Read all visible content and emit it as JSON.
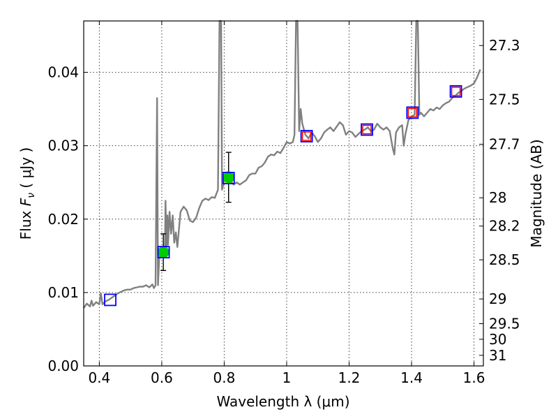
{
  "chart_data": {
    "type": "line",
    "xlabel": "Wavelength  λ (μm)",
    "ylabel": "Flux  F_ν  ( μJy )",
    "ylabel_parts": {
      "prefix": "Flux  ",
      "symbol": "F",
      "sub": "ν",
      "unit": "  ( μJy )"
    },
    "y2label": "Magnitude (AB)",
    "xlim": [
      0.35,
      1.63
    ],
    "ylim": [
      0.0,
      0.047
    ],
    "grid": true,
    "x_ticks": [
      {
        "v": 0.4,
        "label": "0.4"
      },
      {
        "v": 0.6,
        "label": "0.6"
      },
      {
        "v": 0.8,
        "label": "0.8"
      },
      {
        "v": 1.0,
        "label": "1"
      },
      {
        "v": 1.2,
        "label": "1.2"
      },
      {
        "v": 1.4,
        "label": "1.4"
      },
      {
        "v": 1.6,
        "label": "1.6"
      }
    ],
    "y_ticks": [
      {
        "v": 0.0,
        "label": "0.00"
      },
      {
        "v": 0.01,
        "label": "0.01"
      },
      {
        "v": 0.02,
        "label": "0.02"
      },
      {
        "v": 0.03,
        "label": "0.03"
      },
      {
        "v": 0.04,
        "label": "0.04"
      }
    ],
    "mag_ticks": [
      {
        "mag": 27.3,
        "label": "27.3"
      },
      {
        "mag": 27.5,
        "label": "27.5"
      },
      {
        "mag": 27.7,
        "label": "27.7"
      },
      {
        "mag": 28.0,
        "label": "28"
      },
      {
        "mag": 28.2,
        "label": "28.2"
      },
      {
        "mag": 28.5,
        "label": "28.5"
      },
      {
        "mag": 29.0,
        "label": "29"
      },
      {
        "mag": 29.5,
        "label": "29.5"
      },
      {
        "mag": 30.0,
        "label": "30"
      },
      {
        "mag": 31.0,
        "label": "31"
      }
    ],
    "series": [
      {
        "name": "model spectrum",
        "color": "#808080",
        "points": [
          [
            0.35,
            0.0079
          ],
          [
            0.36,
            0.0085
          ],
          [
            0.37,
            0.0081
          ],
          [
            0.375,
            0.0089
          ],
          [
            0.38,
            0.0082
          ],
          [
            0.39,
            0.0087
          ],
          [
            0.4,
            0.0084
          ],
          [
            0.405,
            0.0099
          ],
          [
            0.41,
            0.0084
          ],
          [
            0.42,
            0.0088
          ],
          [
            0.43,
            0.009
          ],
          [
            0.44,
            0.0093
          ],
          [
            0.45,
            0.0096
          ],
          [
            0.46,
            0.0099
          ],
          [
            0.47,
            0.0101
          ],
          [
            0.48,
            0.0103
          ],
          [
            0.49,
            0.0104
          ],
          [
            0.5,
            0.0104
          ],
          [
            0.51,
            0.0106
          ],
          [
            0.52,
            0.0107
          ],
          [
            0.53,
            0.0108
          ],
          [
            0.54,
            0.0108
          ],
          [
            0.55,
            0.011
          ],
          [
            0.56,
            0.0107
          ],
          [
            0.57,
            0.0111
          ],
          [
            0.575,
            0.0106
          ],
          [
            0.58,
            0.011
          ],
          [
            0.585,
            0.0365
          ],
          [
            0.588,
            0.011
          ],
          [
            0.592,
            0.0148
          ],
          [
            0.6,
            0.0152
          ],
          [
            0.605,
            0.0159
          ],
          [
            0.61,
            0.0156
          ],
          [
            0.612,
            0.0225
          ],
          [
            0.615,
            0.016
          ],
          [
            0.618,
            0.0205
          ],
          [
            0.62,
            0.0165
          ],
          [
            0.625,
            0.021
          ],
          [
            0.63,
            0.018
          ],
          [
            0.635,
            0.0205
          ],
          [
            0.64,
            0.0168
          ],
          [
            0.645,
            0.0182
          ],
          [
            0.65,
            0.0162
          ],
          [
            0.66,
            0.021
          ],
          [
            0.67,
            0.0217
          ],
          [
            0.68,
            0.0212
          ],
          [
            0.69,
            0.0198
          ],
          [
            0.7,
            0.0196
          ],
          [
            0.71,
            0.0202
          ],
          [
            0.72,
            0.0215
          ],
          [
            0.73,
            0.0225
          ],
          [
            0.74,
            0.0228
          ],
          [
            0.75,
            0.0226
          ],
          [
            0.76,
            0.023
          ],
          [
            0.77,
            0.0229
          ],
          [
            0.78,
            0.024
          ],
          [
            0.785,
            0.047
          ],
          [
            0.79,
            0.047
          ],
          [
            0.793,
            0.024
          ],
          [
            0.8,
            0.0252
          ],
          [
            0.81,
            0.0257
          ],
          [
            0.82,
            0.0252
          ],
          [
            0.83,
            0.0247
          ],
          [
            0.84,
            0.025
          ],
          [
            0.85,
            0.0247
          ],
          [
            0.86,
            0.025
          ],
          [
            0.87,
            0.0253
          ],
          [
            0.88,
            0.026
          ],
          [
            0.89,
            0.0262
          ],
          [
            0.9,
            0.0262
          ],
          [
            0.91,
            0.027
          ],
          [
            0.92,
            0.0272
          ],
          [
            0.93,
            0.0277
          ],
          [
            0.94,
            0.0285
          ],
          [
            0.95,
            0.0288
          ],
          [
            0.96,
            0.0287
          ],
          [
            0.97,
            0.0292
          ],
          [
            0.98,
            0.029
          ],
          [
            0.99,
            0.0297
          ],
          [
            1.0,
            0.0305
          ],
          [
            1.01,
            0.0303
          ],
          [
            1.02,
            0.0305
          ],
          [
            1.025,
            0.0315
          ],
          [
            1.03,
            0.047
          ],
          [
            1.035,
            0.047
          ],
          [
            1.04,
            0.032
          ],
          [
            1.045,
            0.035
          ],
          [
            1.05,
            0.033
          ],
          [
            1.06,
            0.0315
          ],
          [
            1.07,
            0.031
          ],
          [
            1.08,
            0.0318
          ],
          [
            1.09,
            0.0313
          ],
          [
            1.1,
            0.0305
          ],
          [
            1.11,
            0.031
          ],
          [
            1.12,
            0.0318
          ],
          [
            1.13,
            0.0322
          ],
          [
            1.14,
            0.0325
          ],
          [
            1.15,
            0.032
          ],
          [
            1.16,
            0.0326
          ],
          [
            1.17,
            0.0332
          ],
          [
            1.18,
            0.0328
          ],
          [
            1.19,
            0.0315
          ],
          [
            1.2,
            0.032
          ],
          [
            1.21,
            0.0318
          ],
          [
            1.22,
            0.0312
          ],
          [
            1.23,
            0.0316
          ],
          [
            1.24,
            0.032
          ],
          [
            1.25,
            0.0322
          ],
          [
            1.26,
            0.0325
          ],
          [
            1.27,
            0.032
          ],
          [
            1.28,
            0.0322
          ],
          [
            1.29,
            0.033
          ],
          [
            1.3,
            0.0325
          ],
          [
            1.31,
            0.0322
          ],
          [
            1.32,
            0.0325
          ],
          [
            1.33,
            0.032
          ],
          [
            1.34,
            0.0296
          ],
          [
            1.345,
            0.0288
          ],
          [
            1.35,
            0.0318
          ],
          [
            1.36,
            0.0325
          ],
          [
            1.37,
            0.0328
          ],
          [
            1.375,
            0.03
          ],
          [
            1.38,
            0.0315
          ],
          [
            1.39,
            0.0335
          ],
          [
            1.4,
            0.034
          ],
          [
            1.41,
            0.0342
          ],
          [
            1.415,
            0.047
          ],
          [
            1.42,
            0.047
          ],
          [
            1.425,
            0.0342
          ],
          [
            1.43,
            0.0345
          ],
          [
            1.44,
            0.034
          ],
          [
            1.45,
            0.0345
          ],
          [
            1.46,
            0.035
          ],
          [
            1.47,
            0.0348
          ],
          [
            1.48,
            0.0352
          ],
          [
            1.49,
            0.035
          ],
          [
            1.5,
            0.0355
          ],
          [
            1.51,
            0.0358
          ],
          [
            1.52,
            0.036
          ],
          [
            1.53,
            0.0365
          ],
          [
            1.54,
            0.0368
          ],
          [
            1.55,
            0.0372
          ],
          [
            1.56,
            0.0375
          ],
          [
            1.57,
            0.0378
          ],
          [
            1.58,
            0.038
          ],
          [
            1.59,
            0.0382
          ],
          [
            1.6,
            0.0385
          ],
          [
            1.61,
            0.0393
          ],
          [
            1.62,
            0.0404
          ]
        ]
      }
    ],
    "observed_points": [
      {
        "x": 0.605,
        "y": 0.0155,
        "err": 0.0025
      },
      {
        "x": 0.814,
        "y": 0.0257,
        "err": 0.0034
      }
    ],
    "model_photometry": [
      {
        "x": 0.435,
        "y": 0.009,
        "err": 0
      },
      {
        "x": 0.606,
        "y": 0.0155,
        "err": 0
      },
      {
        "x": 0.814,
        "y": 0.0256,
        "err": 0
      },
      {
        "x": 1.064,
        "y": 0.0313,
        "err": 0
      },
      {
        "x": 1.257,
        "y": 0.0322,
        "err": 0
      },
      {
        "x": 1.403,
        "y": 0.0345,
        "err": 0
      },
      {
        "x": 1.542,
        "y": 0.0374,
        "err": 0
      }
    ],
    "red_marker_points": [
      {
        "x": 1.064,
        "y": 0.0313
      },
      {
        "x": 1.257,
        "y": 0.0322
      },
      {
        "x": 1.403,
        "y": 0.0345
      },
      {
        "x": 1.542,
        "y": 0.0374
      }
    ],
    "colors": {
      "spectrum": "#808080",
      "observed": "#00cc00",
      "model_box": "#0000ff",
      "upper_limit": "#ff0000",
      "errorbar": "#000000"
    }
  }
}
